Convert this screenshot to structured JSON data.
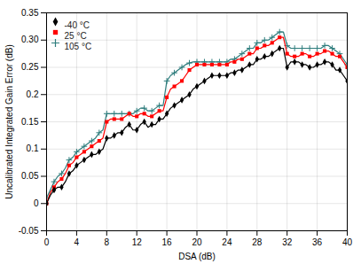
{
  "chart_data": {
    "type": "line",
    "xlabel": "DSA (dB)",
    "ylabel": "Uncalibrated Integrated Gain Error (dB)",
    "xlim": [
      0,
      40
    ],
    "ylim": [
      -0.05,
      0.35
    ],
    "xticks": [
      0,
      4,
      8,
      12,
      16,
      20,
      24,
      28,
      32,
      36,
      40
    ],
    "yticks": [
      -0.05,
      0,
      0.05,
      0.1,
      0.15,
      0.2,
      0.25,
      {
        "value": 0.3,
        "label": "0.30"
      },
      0.35
    ],
    "grid": true,
    "legend": "upper left",
    "x": [
      0,
      0.5,
      1,
      1.5,
      2,
      2.5,
      3,
      3.5,
      4,
      4.5,
      5,
      5.5,
      6,
      6.5,
      7,
      7.5,
      8,
      8.5,
      9,
      9.5,
      10,
      10.5,
      11,
      11.5,
      12,
      12.5,
      13,
      13.5,
      14,
      14.5,
      15,
      15.5,
      16,
      16.5,
      17,
      17.5,
      18,
      18.5,
      19,
      19.5,
      20,
      20.5,
      21,
      21.5,
      22,
      22.5,
      23,
      23.5,
      24,
      24.5,
      25,
      25.5,
      26,
      26.5,
      27,
      27.5,
      28,
      28.5,
      29,
      29.5,
      30,
      30.5,
      31,
      31.5,
      32,
      32.5,
      33,
      33.5,
      34,
      34.5,
      35,
      35.5,
      36,
      36.5,
      37,
      37.5,
      38,
      38.5,
      39,
      39.5,
      40
    ],
    "series": [
      {
        "name": "-40 °C",
        "color": "#000000",
        "marker": "diamond",
        "values": [
          0.0,
          0.015,
          0.025,
          0.03,
          0.03,
          0.04,
          0.055,
          0.06,
          0.07,
          0.075,
          0.08,
          0.085,
          0.09,
          0.09,
          0.095,
          0.1,
          0.12,
          0.12,
          0.125,
          0.13,
          0.13,
          0.14,
          0.145,
          0.135,
          0.135,
          0.145,
          0.15,
          0.14,
          0.145,
          0.145,
          0.155,
          0.155,
          0.165,
          0.175,
          0.18,
          0.185,
          0.19,
          0.195,
          0.2,
          0.21,
          0.215,
          0.22,
          0.225,
          0.23,
          0.235,
          0.235,
          0.235,
          0.235,
          0.235,
          0.24,
          0.24,
          0.245,
          0.245,
          0.25,
          0.255,
          0.255,
          0.265,
          0.265,
          0.27,
          0.27,
          0.275,
          0.28,
          0.285,
          0.285,
          0.25,
          0.26,
          0.26,
          0.26,
          0.255,
          0.255,
          0.25,
          0.25,
          0.255,
          0.255,
          0.26,
          0.26,
          0.255,
          0.245,
          0.245,
          0.235,
          0.225
        ]
      },
      {
        "name": "25 °C",
        "color": "#ff0000",
        "marker": "square",
        "values": [
          0.0,
          0.02,
          0.03,
          0.04,
          0.045,
          0.055,
          0.07,
          0.075,
          0.085,
          0.09,
          0.095,
          0.1,
          0.105,
          0.11,
          0.115,
          0.12,
          0.15,
          0.155,
          0.155,
          0.155,
          0.155,
          0.16,
          0.165,
          0.16,
          0.16,
          0.165,
          0.165,
          0.16,
          0.16,
          0.165,
          0.17,
          0.17,
          0.195,
          0.21,
          0.215,
          0.22,
          0.225,
          0.235,
          0.245,
          0.25,
          0.255,
          0.255,
          0.255,
          0.255,
          0.255,
          0.255,
          0.255,
          0.255,
          0.255,
          0.26,
          0.26,
          0.265,
          0.265,
          0.27,
          0.275,
          0.275,
          0.285,
          0.285,
          0.29,
          0.29,
          0.295,
          0.3,
          0.305,
          0.305,
          0.275,
          0.27,
          0.27,
          0.27,
          0.275,
          0.275,
          0.27,
          0.27,
          0.275,
          0.275,
          0.28,
          0.28,
          0.275,
          0.27,
          0.27,
          0.26,
          0.25
        ]
      },
      {
        "name": "105 °C",
        "color": "#2e7d7d",
        "marker": "plus",
        "values": [
          0.01,
          0.025,
          0.04,
          0.05,
          0.055,
          0.065,
          0.08,
          0.085,
          0.095,
          0.1,
          0.105,
          0.11,
          0.115,
          0.12,
          0.13,
          0.135,
          0.165,
          0.165,
          0.165,
          0.165,
          0.165,
          0.165,
          0.165,
          0.165,
          0.17,
          0.175,
          0.175,
          0.17,
          0.17,
          0.175,
          0.18,
          0.18,
          0.225,
          0.235,
          0.24,
          0.245,
          0.25,
          0.255,
          0.258,
          0.26,
          0.26,
          0.26,
          0.26,
          0.26,
          0.26,
          0.26,
          0.26,
          0.26,
          0.26,
          0.265,
          0.265,
          0.27,
          0.275,
          0.28,
          0.285,
          0.285,
          0.295,
          0.295,
          0.3,
          0.3,
          0.305,
          0.31,
          0.315,
          0.315,
          0.29,
          0.285,
          0.285,
          0.285,
          0.285,
          0.285,
          0.285,
          0.285,
          0.285,
          0.285,
          0.29,
          0.29,
          0.285,
          0.28,
          0.275,
          0.265,
          0.255
        ]
      }
    ]
  }
}
